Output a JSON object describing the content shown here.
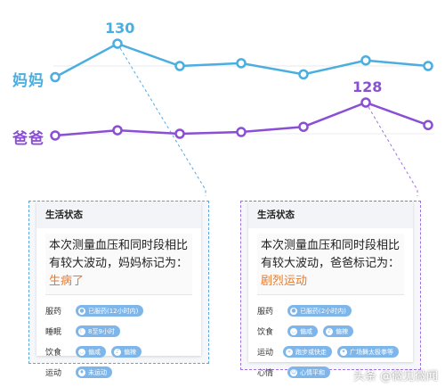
{
  "chart_data": {
    "type": "line",
    "x": [
      1,
      2,
      3,
      4,
      5,
      6,
      7
    ],
    "series": [
      {
        "name": "妈妈",
        "values": [
          118,
          130,
          122,
          123,
          119,
          124,
          122
        ],
        "color": "#4aaee0"
      },
      {
        "name": "爸爸",
        "values": [
          109,
          112,
          110,
          111,
          114,
          128,
          115
        ],
        "color": "#8a4fd4"
      }
    ],
    "annotations": [
      {
        "series": "妈妈",
        "index": 1,
        "text": "130"
      },
      {
        "series": "爸爸",
        "index": 5,
        "text": "128"
      }
    ],
    "grid": false
  },
  "cards": [
    {
      "title": "生活状态",
      "summary": "本次测量血压和同时段相比有较大波动，妈妈标记为：",
      "status": "生病了",
      "status_color": "#e8792b",
      "border_color": "#5aa8e0",
      "rows": [
        {
          "label": "服药",
          "tags": [
            {
              "icon": "pill-icon",
              "text": "已服药(12小时内)"
            }
          ]
        },
        {
          "label": "睡眠",
          "tags": [
            {
              "icon": "moon-icon",
              "text": "8至9小时"
            }
          ]
        },
        {
          "label": "饮食",
          "tags": [
            {
              "icon": "bowl-icon",
              "text": "偏咸"
            },
            {
              "icon": "chili-icon",
              "text": "偏辣"
            }
          ]
        },
        {
          "label": "运动",
          "tags": [
            {
              "icon": "walk-icon",
              "text": "未运动"
            }
          ]
        }
      ]
    },
    {
      "title": "生活状态",
      "summary": "本次测量血压和同时段相比有较大波动，爸爸标记为：",
      "status": "剧烈运动",
      "status_color": "#e8792b",
      "border_color": "#a070e0",
      "rows": [
        {
          "label": "服药",
          "tags": [
            {
              "icon": "pill-icon",
              "text": "已服药(2小时内)"
            }
          ]
        },
        {
          "label": "饮食",
          "tags": [
            {
              "icon": "bowl-icon",
              "text": "偏咸"
            },
            {
              "icon": "chili-icon",
              "text": "偏辣"
            }
          ]
        },
        {
          "label": "运动",
          "tags": [
            {
              "icon": "run-icon",
              "text": "跑步或快走"
            },
            {
              "icon": "dance-icon",
              "text": "广场舞太极拳等"
            }
          ]
        },
        {
          "label": "心情",
          "tags": [
            {
              "icon": "smile-icon",
              "text": "心情平和"
            }
          ]
        }
      ]
    }
  ],
  "watermark": "头条 @微见微闻"
}
